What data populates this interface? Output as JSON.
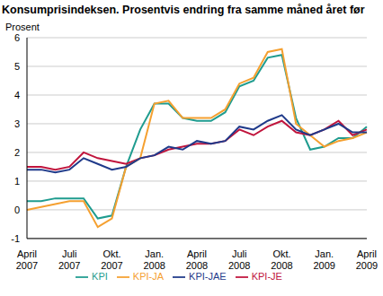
{
  "chart_data": {
    "type": "line",
    "title": "Konsumprisindeksen. Prosentvis endring fra samme måned året før",
    "y_label": "Prosent",
    "categories": [
      "April 2007",
      null,
      null,
      "Juli 2007",
      null,
      null,
      "Okt. 2007",
      null,
      null,
      "Jan. 2008",
      null,
      null,
      "April 2008",
      null,
      null,
      "Juli 2008",
      null,
      null,
      "Okt. 2008",
      null,
      null,
      "Jan. 2009",
      null,
      null,
      "April 2009"
    ],
    "series": [
      {
        "name": "KPI",
        "color": "#1f9c8f",
        "values": [
          0.3,
          0.3,
          0.4,
          0.4,
          0.4,
          -0.3,
          -0.2,
          1.5,
          2.8,
          3.7,
          3.7,
          3.2,
          3.1,
          3.1,
          3.4,
          4.3,
          4.5,
          5.3,
          5.4,
          3.2,
          2.1,
          2.2,
          2.5,
          2.5,
          2.9
        ]
      },
      {
        "name": "KPI-JE",
        "color": "#c0143c",
        "values": [
          1.5,
          1.5,
          1.4,
          1.5,
          2.0,
          1.8,
          1.7,
          1.6,
          1.8,
          1.9,
          2.1,
          2.2,
          2.3,
          2.3,
          2.4,
          2.8,
          2.6,
          2.9,
          3.1,
          2.7,
          2.6,
          2.8,
          3.1,
          2.6,
          2.8
        ]
      },
      {
        "name": "KPI-JA",
        "color": "#f5a030",
        "values": [
          0.0,
          0.1,
          0.2,
          0.3,
          0.3,
          -0.6,
          -0.3,
          1.5,
          1.8,
          3.7,
          3.8,
          3.2,
          3.2,
          3.2,
          3.5,
          4.4,
          4.6,
          5.5,
          5.6,
          3.0,
          2.6,
          2.2,
          2.4,
          2.5,
          2.7
        ]
      },
      {
        "name": "KPI-JAE",
        "color": "#1f3a8a",
        "values": [
          1.4,
          1.4,
          1.3,
          1.4,
          1.8,
          1.6,
          1.4,
          1.5,
          1.8,
          1.9,
          2.2,
          2.1,
          2.4,
          2.3,
          2.4,
          2.9,
          2.8,
          3.1,
          3.3,
          2.8,
          2.6,
          2.8,
          3.0,
          2.7,
          2.7
        ]
      }
    ],
    "ylim": [
      -1,
      6
    ],
    "yticks": [
      -1,
      0,
      1,
      2,
      3,
      4,
      5,
      6
    ],
    "grid": true,
    "legend": "bottom"
  }
}
